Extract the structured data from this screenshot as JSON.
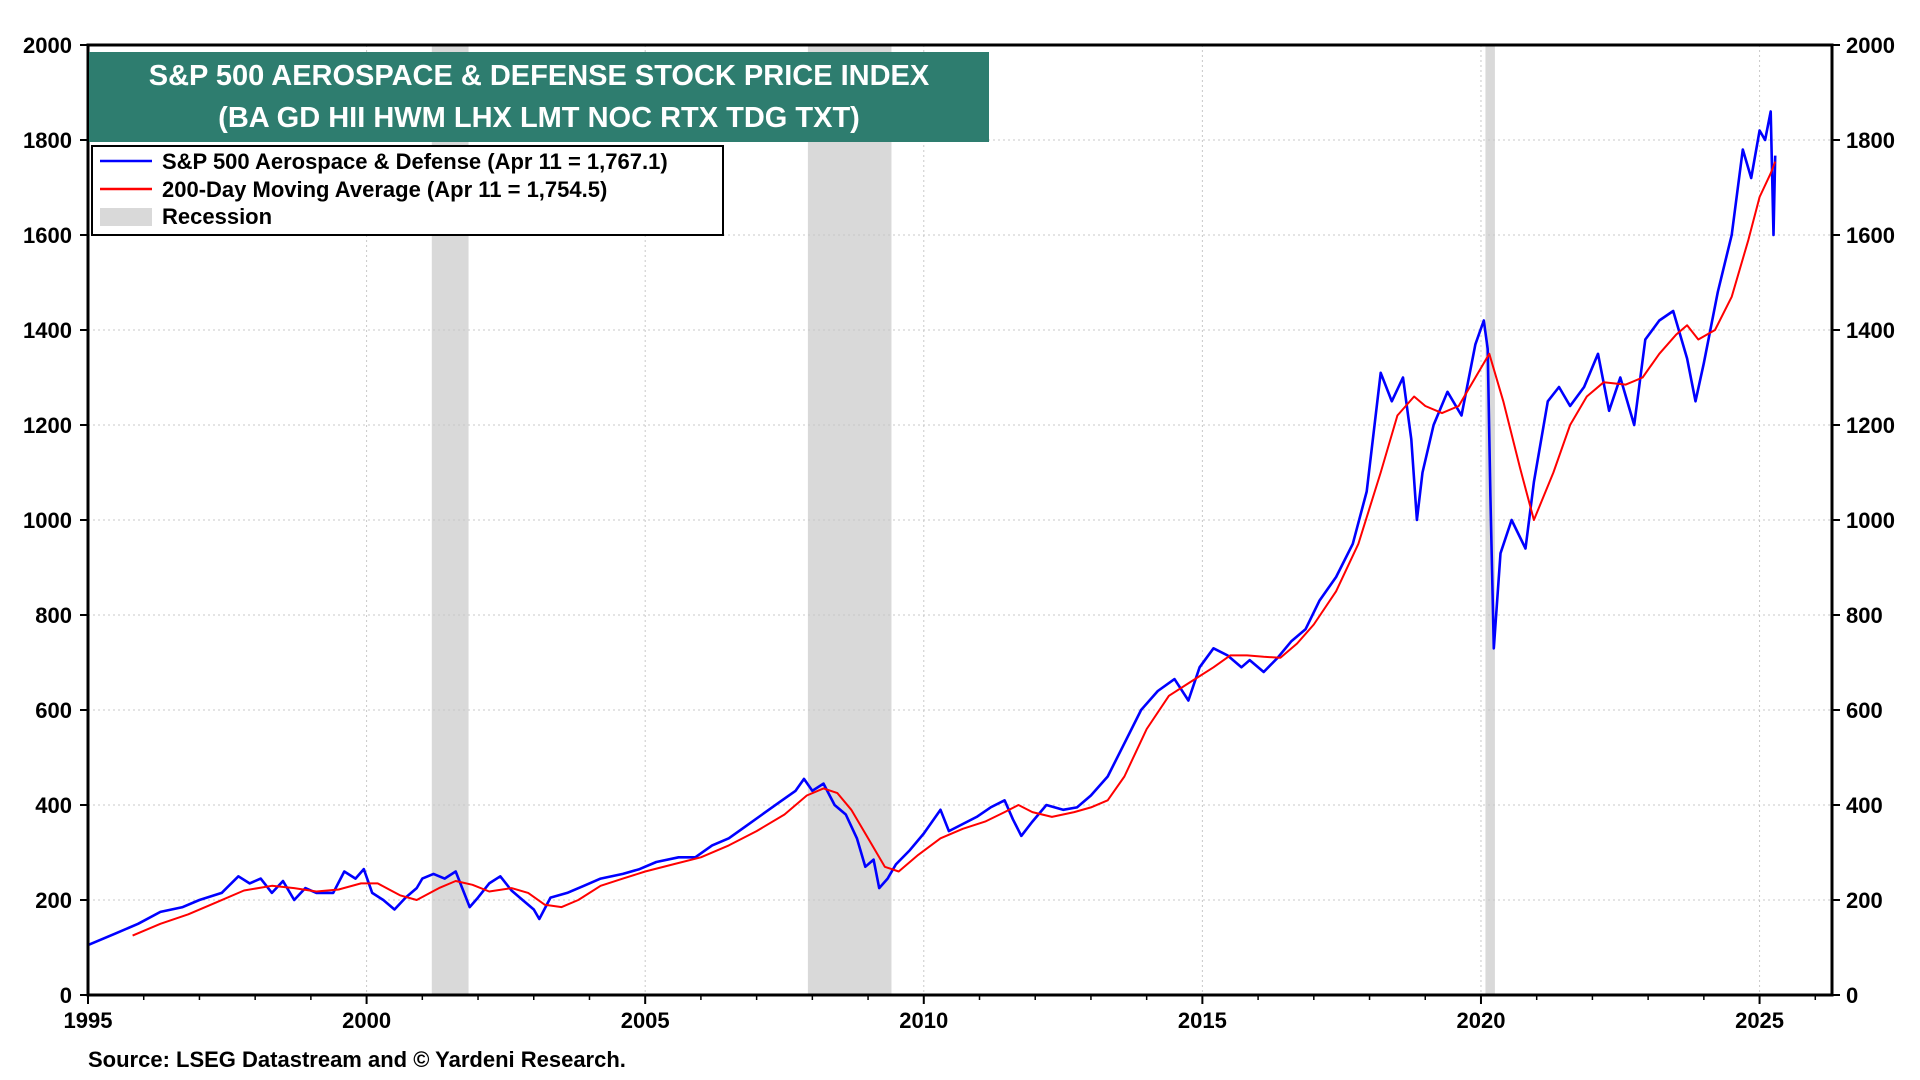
{
  "chart_data": {
    "type": "line",
    "title": "S&P 500 AEROSPACE & DEFENSE STOCK PRICE INDEX",
    "subtitle": "(BA GD HII HWM LHX LMT NOC RTX TDG TXT)",
    "source": "Source: LSEG Datastream and © Yardeni Research.",
    "title_bg_color": "#2e7d6f",
    "xlim": [
      1995.0,
      2026.3
    ],
    "ylim": [
      0,
      2000
    ],
    "x_ticks": [
      1995,
      2000,
      2005,
      2010,
      2015,
      2020,
      2025
    ],
    "x_tick_labels": [
      "1995",
      "2000",
      "2005",
      "2010",
      "2015",
      "2020",
      "2025"
    ],
    "y_ticks": [
      0,
      200,
      400,
      600,
      800,
      1000,
      1200,
      1400,
      1600,
      1800,
      2000
    ],
    "y_tick_labels": [
      "0",
      "200",
      "400",
      "600",
      "800",
      "1000",
      "1200",
      "1400",
      "1600",
      "1800",
      "2000"
    ],
    "grid": true,
    "legend_position": "top-left",
    "legend": [
      {
        "label": "S&P 500 Aerospace & Defense (Apr 11 = 1,767.1)",
        "color": "#0000ff",
        "kind": "line"
      },
      {
        "label": "200-Day Moving Average (Apr 11 = 1,754.5)",
        "color": "#ff0000",
        "kind": "line"
      },
      {
        "label": "Recession",
        "color": "#d9d9d9",
        "kind": "box"
      }
    ],
    "recessions": [
      [
        2001.17,
        2001.83
      ],
      [
        2007.92,
        2009.42
      ],
      [
        2020.08,
        2020.25
      ]
    ],
    "series": [
      {
        "name": "S&P 500 Aerospace & Defense",
        "color": "#0000ff",
        "points": [
          [
            1995.0,
            105
          ],
          [
            1995.5,
            130
          ],
          [
            1995.9,
            150
          ],
          [
            1996.3,
            175
          ],
          [
            1996.7,
            185
          ],
          [
            1997.0,
            200
          ],
          [
            1997.4,
            215
          ],
          [
            1997.7,
            250
          ],
          [
            1997.9,
            235
          ],
          [
            1998.1,
            245
          ],
          [
            1998.3,
            215
          ],
          [
            1998.5,
            240
          ],
          [
            1998.7,
            200
          ],
          [
            1998.9,
            225
          ],
          [
            1999.1,
            215
          ],
          [
            1999.4,
            215
          ],
          [
            1999.6,
            260
          ],
          [
            1999.8,
            245
          ],
          [
            1999.95,
            265
          ],
          [
            2000.1,
            215
          ],
          [
            2000.3,
            200
          ],
          [
            2000.5,
            180
          ],
          [
            2000.7,
            205
          ],
          [
            2000.9,
            225
          ],
          [
            2001.0,
            245
          ],
          [
            2001.2,
            255
          ],
          [
            2001.4,
            245
          ],
          [
            2001.6,
            260
          ],
          [
            2001.75,
            215
          ],
          [
            2001.85,
            185
          ],
          [
            2002.0,
            205
          ],
          [
            2002.2,
            235
          ],
          [
            2002.4,
            250
          ],
          [
            2002.6,
            220
          ],
          [
            2002.8,
            200
          ],
          [
            2003.0,
            180
          ],
          [
            2003.1,
            160
          ],
          [
            2003.3,
            205
          ],
          [
            2003.6,
            215
          ],
          [
            2003.9,
            230
          ],
          [
            2004.2,
            245
          ],
          [
            2004.6,
            255
          ],
          [
            2004.9,
            265
          ],
          [
            2005.2,
            280
          ],
          [
            2005.6,
            290
          ],
          [
            2005.9,
            290
          ],
          [
            2006.2,
            315
          ],
          [
            2006.5,
            330
          ],
          [
            2006.8,
            355
          ],
          [
            2007.1,
            380
          ],
          [
            2007.4,
            405
          ],
          [
            2007.7,
            430
          ],
          [
            2007.85,
            455
          ],
          [
            2008.0,
            430
          ],
          [
            2008.2,
            445
          ],
          [
            2008.4,
            400
          ],
          [
            2008.6,
            380
          ],
          [
            2008.8,
            330
          ],
          [
            2008.95,
            270
          ],
          [
            2009.1,
            285
          ],
          [
            2009.2,
            225
          ],
          [
            2009.35,
            245
          ],
          [
            2009.5,
            275
          ],
          [
            2009.75,
            305
          ],
          [
            2010.0,
            340
          ],
          [
            2010.3,
            390
          ],
          [
            2010.45,
            345
          ],
          [
            2010.7,
            360
          ],
          [
            2010.95,
            375
          ],
          [
            2011.2,
            395
          ],
          [
            2011.45,
            410
          ],
          [
            2011.6,
            370
          ],
          [
            2011.75,
            335
          ],
          [
            2011.95,
            365
          ],
          [
            2012.2,
            400
          ],
          [
            2012.5,
            390
          ],
          [
            2012.75,
            395
          ],
          [
            2013.0,
            420
          ],
          [
            2013.3,
            460
          ],
          [
            2013.6,
            530
          ],
          [
            2013.9,
            600
          ],
          [
            2014.2,
            640
          ],
          [
            2014.5,
            665
          ],
          [
            2014.75,
            620
          ],
          [
            2014.95,
            690
          ],
          [
            2015.2,
            730
          ],
          [
            2015.45,
            715
          ],
          [
            2015.7,
            690
          ],
          [
            2015.85,
            705
          ],
          [
            2016.1,
            680
          ],
          [
            2016.35,
            710
          ],
          [
            2016.6,
            745
          ],
          [
            2016.85,
            770
          ],
          [
            2017.1,
            830
          ],
          [
            2017.4,
            880
          ],
          [
            2017.7,
            950
          ],
          [
            2017.95,
            1060
          ],
          [
            2018.05,
            1160
          ],
          [
            2018.2,
            1310
          ],
          [
            2018.4,
            1250
          ],
          [
            2018.6,
            1300
          ],
          [
            2018.75,
            1170
          ],
          [
            2018.85,
            1000
          ],
          [
            2018.95,
            1100
          ],
          [
            2019.15,
            1200
          ],
          [
            2019.4,
            1270
          ],
          [
            2019.65,
            1220
          ],
          [
            2019.9,
            1370
          ],
          [
            2020.05,
            1420
          ],
          [
            2020.12,
            1360
          ],
          [
            2020.17,
            1050
          ],
          [
            2020.23,
            730
          ],
          [
            2020.35,
            930
          ],
          [
            2020.55,
            1000
          ],
          [
            2020.8,
            940
          ],
          [
            2020.95,
            1080
          ],
          [
            2021.2,
            1250
          ],
          [
            2021.4,
            1280
          ],
          [
            2021.6,
            1240
          ],
          [
            2021.85,
            1280
          ],
          [
            2022.1,
            1350
          ],
          [
            2022.3,
            1230
          ],
          [
            2022.5,
            1300
          ],
          [
            2022.75,
            1200
          ],
          [
            2022.95,
            1380
          ],
          [
            2023.2,
            1420
          ],
          [
            2023.45,
            1440
          ],
          [
            2023.7,
            1340
          ],
          [
            2023.85,
            1250
          ],
          [
            2024.0,
            1330
          ],
          [
            2024.25,
            1480
          ],
          [
            2024.5,
            1600
          ],
          [
            2024.7,
            1780
          ],
          [
            2024.85,
            1720
          ],
          [
            2025.0,
            1820
          ],
          [
            2025.1,
            1800
          ],
          [
            2025.2,
            1860
          ],
          [
            2025.25,
            1600
          ],
          [
            2025.28,
            1767.1
          ]
        ]
      },
      {
        "name": "200-Day Moving Average",
        "color": "#ff0000",
        "points": [
          [
            1995.8,
            125
          ],
          [
            1996.3,
            150
          ],
          [
            1996.8,
            170
          ],
          [
            1997.3,
            195
          ],
          [
            1997.8,
            220
          ],
          [
            1998.3,
            230
          ],
          [
            1998.7,
            225
          ],
          [
            1999.1,
            218
          ],
          [
            1999.5,
            222
          ],
          [
            1999.9,
            235
          ],
          [
            2000.2,
            235
          ],
          [
            2000.6,
            210
          ],
          [
            2000.9,
            200
          ],
          [
            2001.3,
            225
          ],
          [
            2001.6,
            240
          ],
          [
            2001.9,
            232
          ],
          [
            2002.2,
            218
          ],
          [
            2002.6,
            225
          ],
          [
            2002.9,
            215
          ],
          [
            2003.2,
            190
          ],
          [
            2003.5,
            185
          ],
          [
            2003.8,
            200
          ],
          [
            2004.2,
            230
          ],
          [
            2004.6,
            245
          ],
          [
            2005.0,
            260
          ],
          [
            2005.5,
            275
          ],
          [
            2006.0,
            290
          ],
          [
            2006.5,
            315
          ],
          [
            2007.0,
            345
          ],
          [
            2007.5,
            380
          ],
          [
            2007.9,
            420
          ],
          [
            2008.2,
            435
          ],
          [
            2008.45,
            425
          ],
          [
            2008.7,
            390
          ],
          [
            2009.0,
            330
          ],
          [
            2009.3,
            270
          ],
          [
            2009.55,
            260
          ],
          [
            2009.9,
            295
          ],
          [
            2010.3,
            330
          ],
          [
            2010.7,
            350
          ],
          [
            2011.1,
            365
          ],
          [
            2011.45,
            385
          ],
          [
            2011.7,
            400
          ],
          [
            2011.95,
            385
          ],
          [
            2012.3,
            375
          ],
          [
            2012.7,
            385
          ],
          [
            2013.0,
            395
          ],
          [
            2013.3,
            410
          ],
          [
            2013.6,
            460
          ],
          [
            2014.0,
            560
          ],
          [
            2014.4,
            630
          ],
          [
            2014.8,
            660
          ],
          [
            2015.2,
            690
          ],
          [
            2015.5,
            715
          ],
          [
            2015.8,
            715
          ],
          [
            2016.1,
            712
          ],
          [
            2016.4,
            710
          ],
          [
            2016.7,
            740
          ],
          [
            2017.0,
            780
          ],
          [
            2017.4,
            850
          ],
          [
            2017.8,
            950
          ],
          [
            2018.2,
            1100
          ],
          [
            2018.5,
            1220
          ],
          [
            2018.8,
            1260
          ],
          [
            2019.0,
            1240
          ],
          [
            2019.3,
            1225
          ],
          [
            2019.6,
            1240
          ],
          [
            2019.9,
            1300
          ],
          [
            2020.15,
            1350
          ],
          [
            2020.4,
            1250
          ],
          [
            2020.7,
            1110
          ],
          [
            2020.95,
            1000
          ],
          [
            2021.3,
            1100
          ],
          [
            2021.6,
            1200
          ],
          [
            2021.9,
            1260
          ],
          [
            2022.2,
            1290
          ],
          [
            2022.6,
            1285
          ],
          [
            2022.9,
            1300
          ],
          [
            2023.2,
            1350
          ],
          [
            2023.5,
            1390
          ],
          [
            2023.7,
            1410
          ],
          [
            2023.9,
            1380
          ],
          [
            2024.2,
            1400
          ],
          [
            2024.5,
            1470
          ],
          [
            2024.8,
            1590
          ],
          [
            2025.0,
            1680
          ],
          [
            2025.2,
            1730
          ],
          [
            2025.28,
            1754.5
          ]
        ]
      }
    ]
  }
}
